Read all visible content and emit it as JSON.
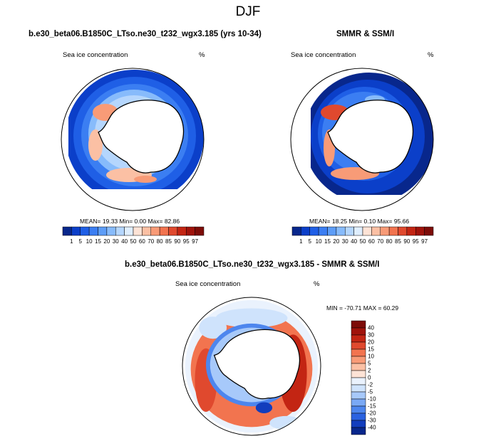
{
  "figure": {
    "title": "DJF"
  },
  "panels": {
    "model": {
      "title": "b.e30_beta06.B1850C_LTso.ne30_t232_wgx3.185 (yrs 10-34)",
      "variable": "Sea ice concentration",
      "units": "%",
      "stats": "MEAN=  19.33  Min=   0.00  Max=  82.86",
      "colorbar": {
        "labels": [
          "1",
          "5",
          "10",
          "15",
          "20",
          "30",
          "40",
          "50",
          "60",
          "70",
          "80",
          "85",
          "90",
          "95",
          "97"
        ],
        "colors": [
          "#08278c",
          "#0b3fc9",
          "#1f5fe6",
          "#3b7ef2",
          "#5d9df7",
          "#87bbfb",
          "#b5d6fd",
          "#dfeefe",
          "#fde3d6",
          "#fbc0a4",
          "#f89b77",
          "#f2744f",
          "#e0492e",
          "#c32513",
          "#a0130b",
          "#7d0c08"
        ]
      }
    },
    "obs": {
      "title": "SMMR & SSM/I",
      "variable": "Sea ice concentration",
      "units": "%",
      "stats": "MEAN=  18.25  Min=   0.10  Max=  95.66",
      "colorbar": {
        "labels": [
          "1",
          "5",
          "10",
          "15",
          "20",
          "30",
          "40",
          "50",
          "60",
          "70",
          "80",
          "85",
          "90",
          "95",
          "97"
        ],
        "colors": [
          "#08278c",
          "#0b3fc9",
          "#1f5fe6",
          "#3b7ef2",
          "#5d9df7",
          "#87bbfb",
          "#b5d6fd",
          "#dfeefe",
          "#fde3d6",
          "#fbc0a4",
          "#f89b77",
          "#f2744f",
          "#e0492e",
          "#c32513",
          "#a0130b",
          "#7d0c08"
        ]
      }
    },
    "diff": {
      "title": "b.e30_beta06.B1850C_LTso.ne30_t232_wgx3.185 - SMMR & SSM/I",
      "variable": "Sea ice concentration",
      "units": "%",
      "stats": "MIN = -70.71  MAX =  60.29",
      "colorbar": {
        "labels": [
          "40",
          "30",
          "20",
          "15",
          "10",
          "5",
          "2",
          "0",
          "-2",
          "-5",
          "-10",
          "-15",
          "-20",
          "-30",
          "-40"
        ],
        "colors": [
          "#7d0c08",
          "#a0130b",
          "#c32513",
          "#e0492e",
          "#f2744f",
          "#f89b77",
          "#fbc0a4",
          "#fde3d6",
          "#eaf2fd",
          "#cfe3fc",
          "#a7c9fa",
          "#7aa9f5",
          "#4d86ee",
          "#2a62e0",
          "#123dbd",
          "#08278c"
        ]
      }
    }
  }
}
